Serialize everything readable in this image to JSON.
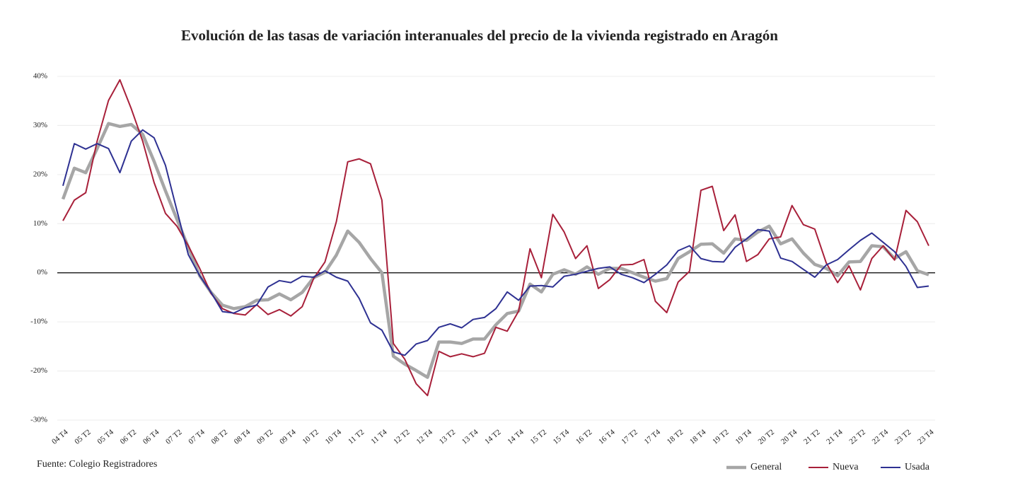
{
  "chart_data": {
    "type": "line",
    "title": "Evolución de las tasas de variación interanuales del precio de la vivienda registrado en Aragón",
    "source": "Fuente: Colegio Registradores",
    "categories": [
      "04 T4",
      null,
      "05 T2",
      null,
      "05 T4",
      null,
      "06 T2",
      null,
      "06 T4",
      null,
      "07 T2",
      null,
      "07 T4",
      null,
      "08 T2",
      null,
      "08 T4",
      null,
      "09 T2",
      null,
      "09 T4",
      null,
      "10 T2",
      null,
      "10 T4",
      null,
      "11 T2",
      null,
      "11 T4",
      null,
      "12 T2",
      null,
      "12 T4",
      null,
      "13 T2",
      null,
      "13 T4",
      null,
      "14 T2",
      null,
      "14 T4",
      null,
      "15 T2",
      null,
      "15 T4",
      null,
      "16 T2",
      null,
      "16 T4",
      null,
      "17 T2",
      null,
      "17 T4",
      null,
      "18 T2",
      null,
      "18 T4",
      null,
      "19 T2",
      null,
      "19 T4",
      null,
      "20 T2",
      null,
      "20 T4",
      null,
      "21 T2",
      null,
      "21 T4",
      null,
      "22 T2",
      null,
      "22 T4",
      null,
      "23 T2",
      null,
      "23 T4"
    ],
    "series": [
      {
        "name": "General",
        "color": "#a6a6a6",
        "width": 4.5,
        "values": [
          15,
          21.3,
          20.4,
          25.3,
          30.4,
          29.8,
          30.2,
          28.2,
          22.7,
          16.7,
          10.9,
          5.2,
          -0.6,
          -4,
          -6.6,
          -7.3,
          -6.9,
          -5.6,
          -5.5,
          -4.3,
          -5.5,
          -4,
          -1,
          0.1,
          3.6,
          8.5,
          6.2,
          2.9,
          0,
          -17,
          -18.6,
          -19.9,
          -21.3,
          -14.1,
          -14.1,
          -14.4,
          -13.5,
          -13.5,
          -10.6,
          -8.3,
          -7.8,
          -2.3,
          -3.9,
          -0.3,
          0.6,
          -0.3,
          1.2,
          -0.3,
          0.9,
          0.9,
          0,
          -0.9,
          -1.7,
          -1.2,
          2.9,
          4.3,
          5.8,
          5.9,
          4,
          6.9,
          6.6,
          8.3,
          9.5,
          5.9,
          6.9,
          4,
          1.7,
          0.9,
          -0.6,
          2.2,
          2.3,
          5.5,
          5.3,
          2.9,
          4.3,
          0.4,
          -0.4
        ]
      },
      {
        "name": "Nueva",
        "color": "#a8203a",
        "width": 2,
        "values": [
          10.6,
          14.8,
          16.3,
          26.8,
          35.1,
          39.3,
          33.4,
          26.8,
          18.4,
          12.1,
          9.5,
          5.5,
          0.9,
          -4.2,
          -7.3,
          -8.3,
          -8.6,
          -6.5,
          -8.5,
          -7.5,
          -8.8,
          -6.9,
          -1.2,
          2.2,
          10.4,
          22.6,
          23.2,
          22.2,
          14.8,
          -14.4,
          -17.6,
          -22.6,
          -25,
          -16,
          -17.1,
          -16.5,
          -17.1,
          -16.4,
          -11.1,
          -11.9,
          -7.8,
          4.9,
          -1,
          11.9,
          8.3,
          2.9,
          5.5,
          -3.2,
          -1.4,
          1.6,
          1.7,
          2.7,
          -5.8,
          -8.1,
          -1.9,
          0.3,
          16.8,
          17.6,
          8.6,
          11.8,
          2.3,
          3.7,
          6.9,
          7.3,
          13.7,
          9.8,
          8.9,
          2,
          -2,
          1.4,
          -3.5,
          2.9,
          5.5,
          2.6,
          12.7,
          10.4,
          5.5
        ]
      },
      {
        "name": "Usada",
        "color": "#2e3192",
        "width": 2,
        "values": [
          17.7,
          26.3,
          25.2,
          26.3,
          25.3,
          20.4,
          26.8,
          29.1,
          27.5,
          21.9,
          12.7,
          3.7,
          -0.6,
          -4,
          -7.9,
          -8.2,
          -7.1,
          -6.6,
          -2.9,
          -1.6,
          -2,
          -0.7,
          -0.9,
          0.4,
          -0.9,
          -1.7,
          -5.2,
          -10.2,
          -11.7,
          -16.1,
          -16.8,
          -14.5,
          -13.8,
          -11.1,
          -10.4,
          -11.2,
          -9.5,
          -9.1,
          -7.3,
          -3.9,
          -5.6,
          -2.7,
          -2.6,
          -2.9,
          -0.7,
          -0.3,
          0.3,
          0.9,
          1.2,
          -0.3,
          -1,
          -2,
          -0.3,
          1.6,
          4.5,
          5.5,
          2.9,
          2.3,
          2.2,
          5.2,
          6.9,
          8.8,
          8.5,
          3,
          2.3,
          0.7,
          -0.9,
          1.6,
          2.7,
          4.7,
          6.6,
          8.1,
          6.2,
          4.3,
          1.3,
          -3,
          -2.7
        ]
      }
    ],
    "ylim": [
      -30,
      40
    ],
    "yticks": [
      {
        "value": -30,
        "label": "-30%"
      },
      {
        "value": -20,
        "label": "-20%"
      },
      {
        "value": -10,
        "label": "-10%"
      },
      {
        "value": 0,
        "label": "0%"
      },
      {
        "value": 10,
        "label": "10%"
      },
      {
        "value": 20,
        "label": "20%"
      },
      {
        "value": 30,
        "label": "30%"
      },
      {
        "value": 40,
        "label": "40%"
      }
    ],
    "grid": true,
    "legend": "bottom-right"
  }
}
